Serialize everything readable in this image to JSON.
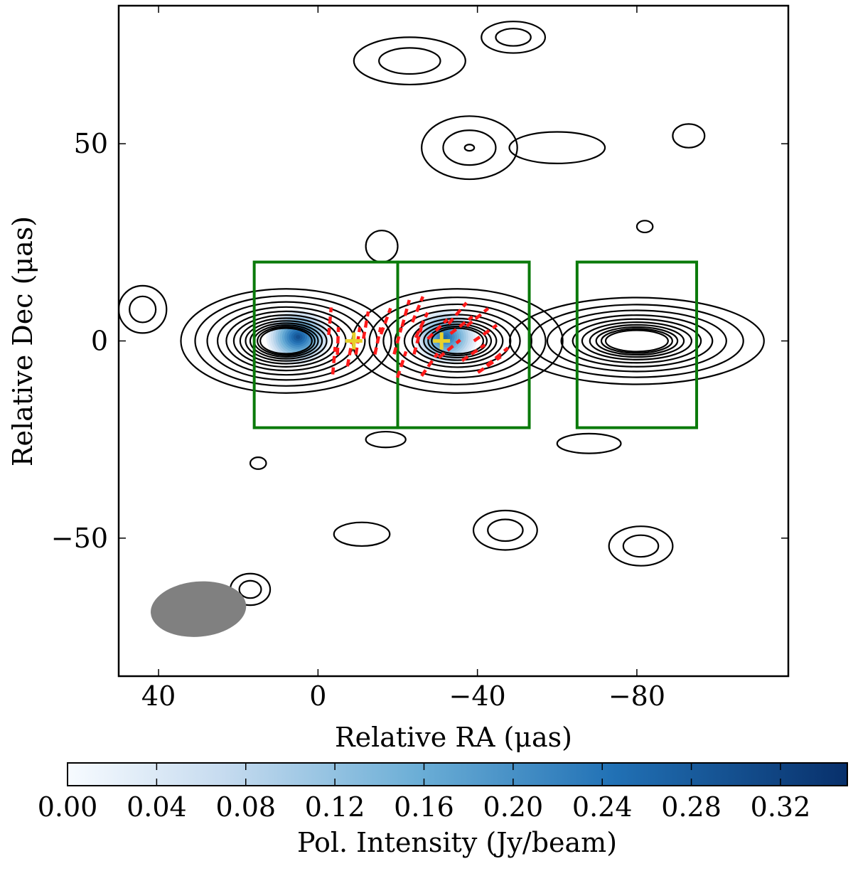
{
  "chart_data": {
    "type": "contour",
    "xlabel": "Relative RA (μas)",
    "ylabel": "Relative Dec (μas)",
    "xlim": [
      50,
      -118
    ],
    "ylim": [
      -85,
      85
    ],
    "xticks": [
      40,
      0,
      -40,
      -80
    ],
    "xtick_labels": [
      "40",
      "0",
      "−40",
      "−80"
    ],
    "yticks": [
      50,
      0,
      -50
    ],
    "ytick_labels": [
      "50",
      "0",
      "−50"
    ],
    "total_intensity_contours": [
      {
        "cx": 8,
        "cy": 0,
        "rx": 24,
        "ry": 12,
        "k": 12,
        "f": 0.17
      },
      {
        "cx": -35,
        "cy": 0,
        "rx": 24,
        "ry": 12,
        "k": 10,
        "f": 0.17
      },
      {
        "cx": -80,
        "cy": 0,
        "rx": 29,
        "ry": 10,
        "k": 10,
        "f": 0.17
      }
    ],
    "small_contours": [
      {
        "cx": -23,
        "cy": 71,
        "rx": 14,
        "ry": 6,
        "k": 2
      },
      {
        "cx": -49,
        "cy": 77,
        "rx": 8,
        "ry": 4,
        "k": 2
      },
      {
        "cx": -38,
        "cy": 49,
        "rx": 12,
        "ry": 8,
        "k": 3
      },
      {
        "cx": -60,
        "cy": 49,
        "rx": 12,
        "ry": 4,
        "k": 1
      },
      {
        "cx": -93,
        "cy": 52,
        "rx": 4,
        "ry": 3,
        "k": 1
      },
      {
        "cx": 44,
        "cy": 8,
        "rx": 6,
        "ry": 6,
        "k": 2
      },
      {
        "cx": -16,
        "cy": 24,
        "rx": 4,
        "ry": 4,
        "k": 1
      },
      {
        "cx": -82,
        "cy": 29,
        "rx": 2,
        "ry": 1.5,
        "k": 1
      },
      {
        "cx": -17,
        "cy": -25,
        "rx": 5,
        "ry": 2,
        "k": 1
      },
      {
        "cx": -68,
        "cy": -26,
        "rx": 8,
        "ry": 2.5,
        "k": 1
      },
      {
        "cx": 15,
        "cy": -31,
        "rx": 2,
        "ry": 1.5,
        "k": 1
      },
      {
        "cx": -11,
        "cy": -49,
        "rx": 7,
        "ry": 3,
        "k": 1
      },
      {
        "cx": -47,
        "cy": -48,
        "rx": 8,
        "ry": 5,
        "k": 2
      },
      {
        "cx": -81,
        "cy": -52,
        "rx": 8,
        "ry": 5,
        "k": 2
      },
      {
        "cx": 17,
        "cy": -63,
        "rx": 5,
        "ry": 4,
        "k": 2
      }
    ],
    "polarized_intensity": [
      {
        "cx": 5,
        "cy": 1,
        "rx": 8,
        "ry": 7,
        "peak": 0.3
      },
      {
        "cx": -32,
        "cy": 1,
        "rx": 8,
        "ry": 7,
        "peak": 0.26
      }
    ],
    "peak_markers": [
      [
        -9,
        0
      ],
      [
        -31,
        0
      ]
    ],
    "region_boxes": [
      {
        "x1": 16,
        "x2": -20,
        "y1": -22,
        "y2": 20
      },
      {
        "x1": -20,
        "x2": -53,
        "y1": -22,
        "y2": 20
      },
      {
        "x1": -65,
        "x2": -95,
        "y1": -22,
        "y2": 20
      }
    ],
    "evpa_ticks": [
      [
        -5,
        0,
        88
      ],
      [
        -10,
        0,
        82
      ],
      [
        -15,
        0,
        78
      ],
      [
        -20,
        0,
        75
      ],
      [
        -25,
        0,
        75
      ],
      [
        -8,
        -3,
        80
      ],
      [
        -12,
        4,
        80
      ],
      [
        -3,
        5,
        85
      ],
      [
        -17,
        5,
        70
      ],
      [
        -22,
        7,
        75
      ],
      [
        -21,
        -6,
        72
      ],
      [
        -26,
        4,
        65
      ],
      [
        -30,
        3,
        45
      ],
      [
        -33,
        -2,
        40
      ],
      [
        -36,
        4,
        38
      ],
      [
        -39,
        -3,
        35
      ],
      [
        -42,
        2,
        35
      ],
      [
        -45,
        -4,
        40
      ],
      [
        -28,
        -6,
        55
      ],
      [
        -35,
        7,
        50
      ],
      [
        -40,
        6,
        40
      ],
      [
        -43,
        -6,
        35
      ],
      [
        -25,
        8,
        68
      ],
      [
        -4,
        -5,
        85
      ]
    ],
    "beam": {
      "ra": 30,
      "dec": -68,
      "major": 12,
      "minor": 7,
      "pa_deg": -5
    },
    "colorbar": {
      "label": "Pol. Intensity (Jy/beam)",
      "range": [
        0,
        0.35
      ],
      "tick_values": [
        0.0,
        0.04,
        0.08,
        0.12,
        0.16,
        0.2,
        0.24,
        0.28,
        0.32
      ],
      "tick_labels": [
        "0.00",
        "0.04",
        "0.08",
        "0.12",
        "0.16",
        "0.20",
        "0.24",
        "0.28",
        "0.32"
      ],
      "colormap": "Blues"
    },
    "colors": {
      "contour": "#000000",
      "box": "#0a7a0a",
      "evpa": "#ff1a1a",
      "marker": "#e8d12a",
      "beam": "#808080"
    }
  }
}
